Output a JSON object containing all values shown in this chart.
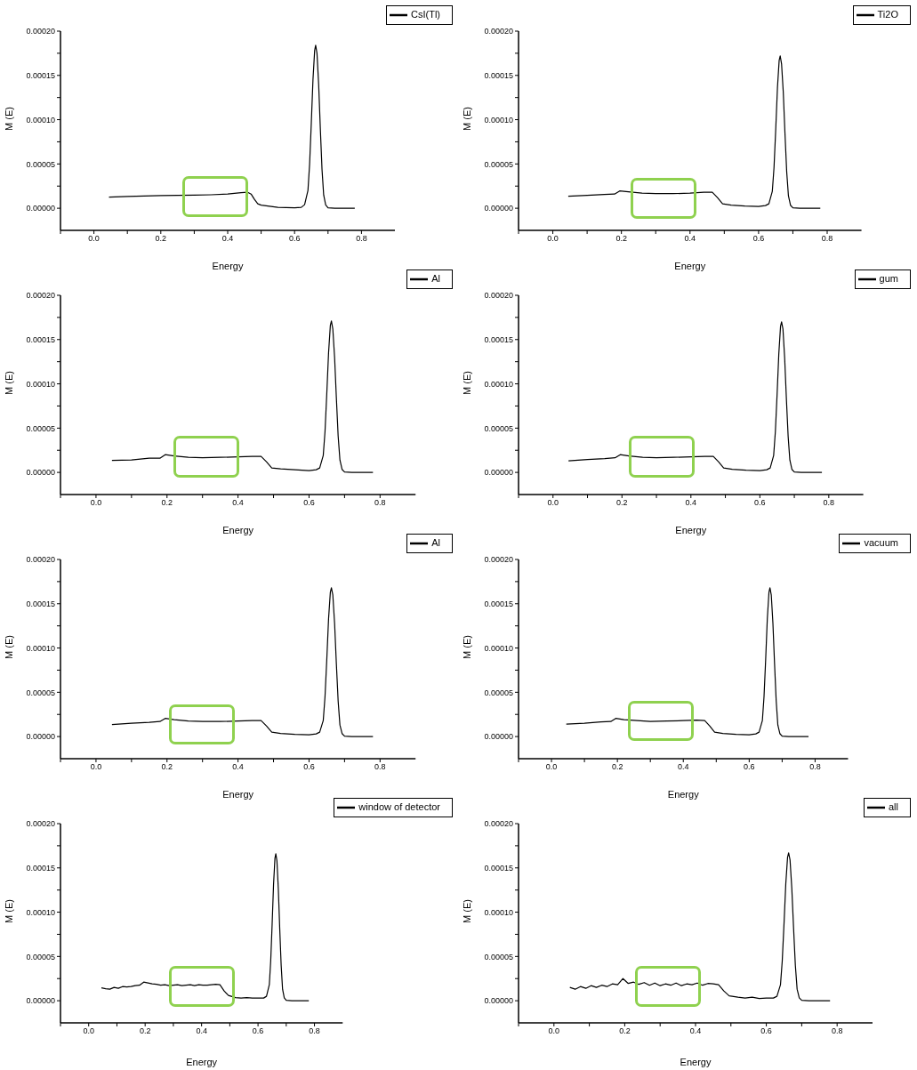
{
  "chart_data": [
    {
      "type": "line",
      "xlabel": "Energy",
      "ylabel": "M (E)",
      "legend": "top right",
      "xlim": [
        -0.1,
        0.9
      ],
      "ylim": [
        -2.5e-05,
        0.0002
      ],
      "xticks": [
        {
          "value": -0.1,
          "label": null
        },
        {
          "value": 0,
          "label": "0.0"
        },
        {
          "value": 0.1,
          "label": null
        },
        0.2,
        {
          "value": 0.3,
          "label": null
        },
        0.4,
        {
          "value": 0.5,
          "label": null
        },
        0.6,
        {
          "value": 0.7,
          "label": null
        },
        0.8
      ],
      "yticks": [
        {
          "value": 0,
          "label": "0.00000"
        },
        {
          "value": 2.5e-05,
          "label": null
        },
        {
          "value": 5e-05,
          "label": "0.00005"
        },
        {
          "value": 7.5e-05,
          "label": null
        },
        {
          "value": 0.0001,
          "label": "0.00010"
        },
        {
          "value": 0.000125,
          "label": null
        },
        {
          "value": 0.00015,
          "label": "0.00015"
        },
        {
          "value": 0.000175,
          "label": null
        },
        {
          "value": 0.0002,
          "label": "0.00020"
        }
      ],
      "x": [
        0.045,
        0.1,
        0.15,
        0.2,
        0.25,
        0.3,
        0.35,
        0.4,
        0.44,
        0.46,
        0.47,
        0.48,
        0.49,
        0.5,
        0.55,
        0.6,
        0.62,
        0.63,
        0.64,
        0.645,
        0.65,
        0.655,
        0.66,
        0.663,
        0.667,
        0.672,
        0.677,
        0.682,
        0.687,
        0.693,
        0.7,
        0.72,
        0.78
      ],
      "series": [
        {
          "name": "CsI(Tl)",
          "color": "#000000",
          "values": [
            1.25e-05,
            1.33e-05,
            1.38e-05,
            1.42e-05,
            1.45e-05,
            1.48e-05,
            1.52e-05,
            1.6e-05,
            1.75e-05,
            1.8e-05,
            1.6e-05,
            1e-05,
            5e-06,
            3.5e-06,
            1e-06,
            5e-07,
            1e-06,
            4e-06,
            2e-05,
            5e-05,
            9.6e-05,
            0.000145,
            0.000178,
            0.000184,
            0.000175,
            0.00014,
            9e-05,
            4.4e-05,
            1.5e-05,
            3.7e-06,
            5e-07,
            0,
            0
          ]
        }
      ]
    },
    {
      "type": "line",
      "xlabel": "Energy",
      "ylabel": "M (E)",
      "legend": "top right",
      "xlim": [
        -0.1,
        0.9
      ],
      "ylim": [
        -2.5e-05,
        0.0002
      ],
      "xticks": [
        {
          "value": -0.1,
          "label": null
        },
        {
          "value": 0,
          "label": "0.0"
        },
        {
          "value": 0.1,
          "label": null
        },
        0.2,
        {
          "value": 0.3,
          "label": null
        },
        0.4,
        {
          "value": 0.5,
          "label": null
        },
        0.6,
        {
          "value": 0.7,
          "label": null
        },
        0.8
      ],
      "yticks": [
        {
          "value": 0,
          "label": "0.00000"
        },
        {
          "value": 2.5e-05,
          "label": null
        },
        {
          "value": 5e-05,
          "label": "0.00005"
        },
        {
          "value": 7.5e-05,
          "label": null
        },
        {
          "value": 0.0001,
          "label": "0.00010"
        },
        {
          "value": 0.000125,
          "label": null
        },
        {
          "value": 0.00015,
          "label": "0.00015"
        },
        {
          "value": 0.000175,
          "label": null
        },
        {
          "value": 0.0002,
          "label": "0.00020"
        }
      ],
      "x": [
        0.045,
        0.1,
        0.15,
        0.18,
        0.195,
        0.22,
        0.26,
        0.3,
        0.35,
        0.4,
        0.44,
        0.465,
        0.48,
        0.495,
        0.52,
        0.56,
        0.6,
        0.62,
        0.63,
        0.64,
        0.645,
        0.65,
        0.655,
        0.66,
        0.663,
        0.667,
        0.672,
        0.677,
        0.682,
        0.687,
        0.693,
        0.7,
        0.72,
        0.78
      ],
      "series": [
        {
          "name": "Ti2O",
          "color": "#000000",
          "values": [
            1.35e-05,
            1.45e-05,
            1.55e-05,
            1.6e-05,
            1.95e-05,
            1.85e-05,
            1.7e-05,
            1.65e-05,
            1.65e-05,
            1.7e-05,
            1.8e-05,
            1.8e-05,
            1.2e-05,
            5e-06,
            3.5e-06,
            2.5e-06,
            2e-06,
            3e-06,
            5e-06,
            1.9e-05,
            4.6e-05,
            8.9e-05,
            0.000136,
            0.000167,
            0.000172,
            0.000163,
            0.000131,
            8.4e-05,
            4.1e-05,
            1.4e-05,
            3.4e-06,
            5e-07,
            0,
            0
          ]
        }
      ]
    },
    {
      "type": "line",
      "xlabel": "Energy",
      "ylabel": "M (E)",
      "legend": "top right",
      "xlim": [
        -0.1,
        0.9
      ],
      "ylim": [
        -2.5e-05,
        0.0002
      ],
      "xticks": [
        {
          "value": -0.1,
          "label": null
        },
        {
          "value": 0,
          "label": "0.0"
        },
        {
          "value": 0.1,
          "label": null
        },
        0.2,
        {
          "value": 0.3,
          "label": null
        },
        0.4,
        {
          "value": 0.5,
          "label": null
        },
        0.6,
        {
          "value": 0.7,
          "label": null
        },
        0.8
      ],
      "yticks": [
        {
          "value": 0,
          "label": "0.00000"
        },
        {
          "value": 2.5e-05,
          "label": null
        },
        {
          "value": 5e-05,
          "label": "0.00005"
        },
        {
          "value": 7.5e-05,
          "label": null
        },
        {
          "value": 0.0001,
          "label": "0.00010"
        },
        {
          "value": 0.000125,
          "label": null
        },
        {
          "value": 0.00015,
          "label": "0.00015"
        },
        {
          "value": 0.000175,
          "label": null
        },
        {
          "value": 0.0002,
          "label": "0.00020"
        }
      ],
      "x": [
        0.045,
        0.1,
        0.15,
        0.18,
        0.195,
        0.22,
        0.26,
        0.3,
        0.35,
        0.4,
        0.44,
        0.465,
        0.48,
        0.495,
        0.52,
        0.56,
        0.6,
        0.62,
        0.63,
        0.64,
        0.645,
        0.65,
        0.655,
        0.66,
        0.663,
        0.667,
        0.672,
        0.677,
        0.682,
        0.687,
        0.693,
        0.7,
        0.72,
        0.78
      ],
      "series": [
        {
          "name": "Al",
          "color": "#000000",
          "values": [
            1.35e-05,
            1.4e-05,
            1.6e-05,
            1.6e-05,
            2e-05,
            1.85e-05,
            1.7e-05,
            1.65e-05,
            1.7e-05,
            1.75e-05,
            1.8e-05,
            1.8e-05,
            1.2e-05,
            5e-06,
            4e-06,
            3e-06,
            2e-06,
            3e-06,
            5e-06,
            1.9e-05,
            4.6e-05,
            8.9e-05,
            0.000135,
            0.000166,
            0.000171,
            0.000162,
            0.00013,
            8.4e-05,
            4.1e-05,
            1.4e-05,
            3.4e-06,
            5e-07,
            0,
            0
          ]
        }
      ]
    },
    {
      "type": "line",
      "xlabel": "Energy",
      "ylabel": "M (E)",
      "legend": "top right",
      "xlim": [
        -0.1,
        0.9
      ],
      "ylim": [
        -2.5e-05,
        0.0002
      ],
      "xticks": [
        {
          "value": -0.1,
          "label": null
        },
        {
          "value": 0,
          "label": "0.0"
        },
        {
          "value": 0.1,
          "label": null
        },
        0.2,
        {
          "value": 0.3,
          "label": null
        },
        0.4,
        {
          "value": 0.5,
          "label": null
        },
        0.6,
        {
          "value": 0.7,
          "label": null
        },
        0.8
      ],
      "yticks": [
        {
          "value": 0,
          "label": "0.00000"
        },
        {
          "value": 2.5e-05,
          "label": null
        },
        {
          "value": 5e-05,
          "label": "0.00005"
        },
        {
          "value": 7.5e-05,
          "label": null
        },
        {
          "value": 0.0001,
          "label": "0.00010"
        },
        {
          "value": 0.000125,
          "label": null
        },
        {
          "value": 0.00015,
          "label": "0.00015"
        },
        {
          "value": 0.000175,
          "label": null
        },
        {
          "value": 0.0002,
          "label": "0.00020"
        }
      ],
      "x": [
        0.045,
        0.1,
        0.15,
        0.18,
        0.195,
        0.22,
        0.26,
        0.3,
        0.35,
        0.4,
        0.44,
        0.465,
        0.48,
        0.495,
        0.52,
        0.56,
        0.6,
        0.62,
        0.63,
        0.64,
        0.645,
        0.65,
        0.655,
        0.66,
        0.663,
        0.667,
        0.672,
        0.677,
        0.682,
        0.687,
        0.693,
        0.7,
        0.72,
        0.78
      ],
      "series": [
        {
          "name": "gum",
          "color": "#000000",
          "values": [
            1.3e-05,
            1.45e-05,
            1.55e-05,
            1.65e-05,
            2e-05,
            1.85e-05,
            1.7e-05,
            1.65e-05,
            1.7e-05,
            1.75e-05,
            1.8e-05,
            1.8e-05,
            1.2e-05,
            5e-06,
            3.5e-06,
            2.5e-06,
            2e-06,
            3e-06,
            5e-06,
            1.9e-05,
            4.6e-05,
            8.8e-05,
            0.000134,
            0.000165,
            0.00017,
            0.000162,
            0.000129,
            8.3e-05,
            4.1e-05,
            1.4e-05,
            3.4e-06,
            5e-07,
            0,
            0
          ]
        }
      ]
    },
    {
      "type": "line",
      "xlabel": "Energy",
      "ylabel": "M (E)",
      "legend": "top right",
      "xlim": [
        -0.1,
        0.9
      ],
      "ylim": [
        -2.5e-05,
        0.0002
      ],
      "xticks": [
        {
          "value": -0.1,
          "label": null
        },
        {
          "value": 0,
          "label": "0.0"
        },
        {
          "value": 0.1,
          "label": null
        },
        0.2,
        {
          "value": 0.3,
          "label": null
        },
        0.4,
        {
          "value": 0.5,
          "label": null
        },
        0.6,
        {
          "value": 0.7,
          "label": null
        },
        0.8
      ],
      "yticks": [
        {
          "value": 0,
          "label": "0.00000"
        },
        {
          "value": 2.5e-05,
          "label": null
        },
        {
          "value": 5e-05,
          "label": "0.00005"
        },
        {
          "value": 7.5e-05,
          "label": null
        },
        {
          "value": 0.0001,
          "label": "0.00010"
        },
        {
          "value": 0.000125,
          "label": null
        },
        {
          "value": 0.00015,
          "label": "0.00015"
        },
        {
          "value": 0.000175,
          "label": null
        },
        {
          "value": 0.0002,
          "label": "0.00020"
        }
      ],
      "x": [
        0.045,
        0.1,
        0.15,
        0.18,
        0.195,
        0.22,
        0.26,
        0.3,
        0.35,
        0.4,
        0.44,
        0.465,
        0.48,
        0.495,
        0.52,
        0.56,
        0.6,
        0.62,
        0.63,
        0.64,
        0.645,
        0.65,
        0.655,
        0.66,
        0.663,
        0.667,
        0.672,
        0.677,
        0.682,
        0.687,
        0.693,
        0.7,
        0.72,
        0.78
      ],
      "series": [
        {
          "name": "Al",
          "color": "#000000",
          "values": [
            1.35e-05,
            1.5e-05,
            1.6e-05,
            1.7e-05,
            2.05e-05,
            1.9e-05,
            1.75e-05,
            1.7e-05,
            1.7e-05,
            1.75e-05,
            1.8e-05,
            1.8e-05,
            1.2e-05,
            5e-06,
            3.5e-06,
            2.5e-06,
            2e-06,
            3e-06,
            5e-06,
            1.8e-05,
            4.5e-05,
            8.7e-05,
            0.000133,
            0.000163,
            0.000168,
            0.00016,
            0.000128,
            8.2e-05,
            4e-05,
            1.3e-05,
            3.4e-06,
            5e-07,
            0,
            0
          ]
        }
      ]
    },
    {
      "type": "line",
      "xlabel": "Energy",
      "ylabel": "M (E)",
      "legend": "top right",
      "xlim": [
        -0.1,
        0.9
      ],
      "ylim": [
        -2.5e-05,
        0.0002
      ],
      "xticks": [
        {
          "value": -0.1,
          "label": null
        },
        {
          "value": 0,
          "label": "0.0"
        },
        {
          "value": 0.1,
          "label": null
        },
        0.2,
        {
          "value": 0.3,
          "label": null
        },
        0.4,
        {
          "value": 0.5,
          "label": null
        },
        0.6,
        {
          "value": 0.7,
          "label": null
        },
        0.8
      ],
      "yticks": [
        {
          "value": 0,
          "label": "0.00000"
        },
        {
          "value": 2.5e-05,
          "label": null
        },
        {
          "value": 5e-05,
          "label": "0.00005"
        },
        {
          "value": 7.5e-05,
          "label": null
        },
        {
          "value": 0.0001,
          "label": "0.00010"
        },
        {
          "value": 0.000125,
          "label": null
        },
        {
          "value": 0.00015,
          "label": "0.00015"
        },
        {
          "value": 0.000175,
          "label": null
        },
        {
          "value": 0.0002,
          "label": "0.00020"
        }
      ],
      "x": [
        0.045,
        0.1,
        0.15,
        0.18,
        0.195,
        0.22,
        0.26,
        0.3,
        0.35,
        0.4,
        0.44,
        0.465,
        0.48,
        0.495,
        0.52,
        0.56,
        0.6,
        0.62,
        0.63,
        0.64,
        0.645,
        0.65,
        0.655,
        0.66,
        0.663,
        0.667,
        0.672,
        0.677,
        0.682,
        0.687,
        0.693,
        0.7,
        0.72,
        0.78
      ],
      "series": [
        {
          "name": "vacuum",
          "color": "#000000",
          "values": [
            1.4e-05,
            1.5e-05,
            1.65e-05,
            1.7e-05,
            2.05e-05,
            1.9e-05,
            1.8e-05,
            1.7e-05,
            1.75e-05,
            1.8e-05,
            1.85e-05,
            1.8e-05,
            1.2e-05,
            5e-06,
            3.5e-06,
            2.5e-06,
            2e-06,
            3e-06,
            5e-06,
            1.8e-05,
            4.5e-05,
            8.7e-05,
            0.000133,
            0.000163,
            0.000168,
            0.00016,
            0.000128,
            8.2e-05,
            4e-05,
            1.3e-05,
            3.4e-06,
            5e-07,
            0,
            0
          ]
        }
      ]
    },
    {
      "type": "line",
      "xlabel": "Energy",
      "ylabel": "M (E)",
      "legend": "top right",
      "xlim": [
        -0.1,
        0.9
      ],
      "ylim": [
        -2.5e-05,
        0.0002
      ],
      "xticks": [
        {
          "value": -0.1,
          "label": null
        },
        {
          "value": 0,
          "label": "0.0"
        },
        {
          "value": 0.1,
          "label": null
        },
        0.2,
        {
          "value": 0.3,
          "label": null
        },
        0.4,
        {
          "value": 0.5,
          "label": null
        },
        0.6,
        {
          "value": 0.7,
          "label": null
        },
        0.8
      ],
      "yticks": [
        {
          "value": 0,
          "label": "0.00000"
        },
        {
          "value": 2.5e-05,
          "label": null
        },
        {
          "value": 5e-05,
          "label": "0.00005"
        },
        {
          "value": 7.5e-05,
          "label": null
        },
        {
          "value": 0.0001,
          "label": "0.00010"
        },
        {
          "value": 0.000125,
          "label": null
        },
        {
          "value": 0.00015,
          "label": "0.00015"
        },
        {
          "value": 0.000175,
          "label": null
        },
        {
          "value": 0.0002,
          "label": "0.00020"
        }
      ],
      "x": [
        0.045,
        0.06,
        0.075,
        0.09,
        0.105,
        0.12,
        0.135,
        0.15,
        0.165,
        0.18,
        0.195,
        0.21,
        0.225,
        0.24,
        0.255,
        0.27,
        0.285,
        0.3,
        0.315,
        0.33,
        0.345,
        0.36,
        0.375,
        0.39,
        0.405,
        0.42,
        0.435,
        0.45,
        0.465,
        0.48,
        0.495,
        0.52,
        0.54,
        0.56,
        0.58,
        0.6,
        0.62,
        0.63,
        0.64,
        0.645,
        0.65,
        0.655,
        0.66,
        0.663,
        0.667,
        0.672,
        0.677,
        0.682,
        0.687,
        0.693,
        0.7,
        0.72,
        0.78
      ],
      "series": [
        {
          "name": "window of detector",
          "color": "#000000",
          "values": [
            1.45e-05,
            1.35e-05,
            1.3e-05,
            1.5e-05,
            1.4e-05,
            1.6e-05,
            1.55e-05,
            1.6e-05,
            1.7e-05,
            1.75e-05,
            2.1e-05,
            2e-05,
            1.9e-05,
            1.85e-05,
            1.75e-05,
            1.8e-05,
            1.7e-05,
            1.75e-05,
            1.8e-05,
            1.7e-05,
            1.75e-05,
            1.8e-05,
            1.7e-05,
            1.8e-05,
            1.75e-05,
            1.75e-05,
            1.8e-05,
            1.85e-05,
            1.8e-05,
            1.1e-05,
            6e-06,
            3.5e-06,
            3e-06,
            3.5e-06,
            3e-06,
            3e-06,
            3e-06,
            5e-06,
            1.8e-05,
            4.5e-05,
            8.6e-05,
            0.000131,
            0.000161,
            0.000166,
            0.000158,
            0.000126,
            8.1e-05,
            4e-05,
            1.3e-05,
            3.3e-06,
            5e-07,
            0,
            0
          ]
        }
      ]
    },
    {
      "type": "line",
      "xlabel": "Energy",
      "ylabel": "M (E)",
      "legend": "top right",
      "xlim": [
        -0.1,
        0.9
      ],
      "ylim": [
        -2.5e-05,
        0.0002
      ],
      "xticks": [
        {
          "value": -0.1,
          "label": null
        },
        {
          "value": 0,
          "label": "0.0"
        },
        {
          "value": 0.1,
          "label": null
        },
        0.2,
        {
          "value": 0.3,
          "label": null
        },
        0.4,
        {
          "value": 0.5,
          "label": null
        },
        0.6,
        {
          "value": 0.7,
          "label": null
        },
        0.8
      ],
      "yticks": [
        {
          "value": 0,
          "label": "0.00000"
        },
        {
          "value": 2.5e-05,
          "label": null
        },
        {
          "value": 5e-05,
          "label": "0.00005"
        },
        {
          "value": 7.5e-05,
          "label": null
        },
        {
          "value": 0.0001,
          "label": "0.00010"
        },
        {
          "value": 0.000125,
          "label": null
        },
        {
          "value": 0.00015,
          "label": "0.00015"
        },
        {
          "value": 0.000175,
          "label": null
        },
        {
          "value": 0.0002,
          "label": "0.00020"
        }
      ],
      "x": [
        0.045,
        0.06,
        0.075,
        0.09,
        0.105,
        0.12,
        0.135,
        0.15,
        0.165,
        0.18,
        0.195,
        0.21,
        0.225,
        0.24,
        0.255,
        0.27,
        0.285,
        0.3,
        0.315,
        0.33,
        0.345,
        0.36,
        0.375,
        0.39,
        0.405,
        0.42,
        0.435,
        0.45,
        0.465,
        0.48,
        0.495,
        0.52,
        0.54,
        0.56,
        0.58,
        0.6,
        0.62,
        0.63,
        0.64,
        0.645,
        0.65,
        0.655,
        0.66,
        0.663,
        0.667,
        0.672,
        0.677,
        0.682,
        0.687,
        0.693,
        0.7,
        0.72,
        0.78
      ],
      "series": [
        {
          "name": "all",
          "color": "#000000",
          "values": [
            1.5e-05,
            1.3e-05,
            1.6e-05,
            1.4e-05,
            1.7e-05,
            1.5e-05,
            1.75e-05,
            1.6e-05,
            1.9e-05,
            1.8e-05,
            2.5e-05,
            1.95e-05,
            2.1e-05,
            1.85e-05,
            2.05e-05,
            1.75e-05,
            2e-05,
            1.7e-05,
            1.9e-05,
            1.75e-05,
            2e-05,
            1.7e-05,
            1.9e-05,
            1.8e-05,
            2e-05,
            1.75e-05,
            1.95e-05,
            1.9e-05,
            1.8e-05,
            1.1e-05,
            5.5e-06,
            4e-06,
            3e-06,
            4e-06,
            2.5e-06,
            3e-06,
            3e-06,
            5e-06,
            1.8e-05,
            4.5e-05,
            8.7e-05,
            0.000132,
            0.000162,
            0.000167,
            0.000159,
            0.000127,
            8.2e-05,
            4e-05,
            1.3e-05,
            3.3e-06,
            5e-07,
            0,
            0
          ]
        }
      ]
    }
  ]
}
